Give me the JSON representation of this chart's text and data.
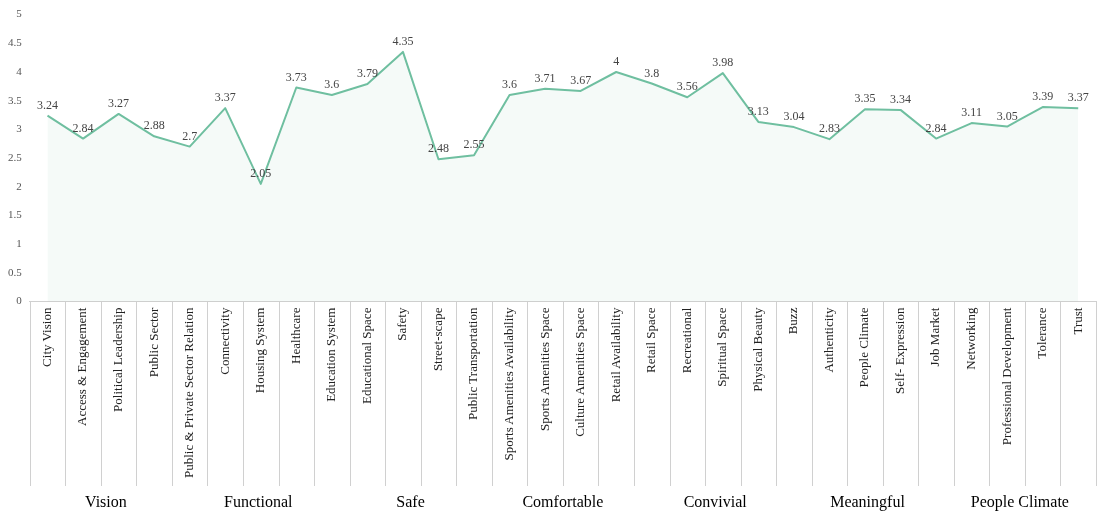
{
  "chart_data": {
    "type": "area",
    "categories": [
      "City Vision",
      "Access & Engagement",
      "Political Leadership",
      "Public Sector",
      "Public & Private Sector Relation",
      "Connectivity",
      "Housing System",
      "Healthcare",
      "Education System",
      "Educational Space",
      "Safety",
      "Street-scape",
      "Public Transportation",
      "Sports Amenities Availability",
      "Sports Amenities Space",
      "Culture Amenities Space",
      "Retail Availability",
      "Retail Space",
      "Recreational",
      "Spiritual Space",
      "Physical Beauty",
      "Buzz",
      "Authenticity",
      "People Climate",
      "Self- Expression",
      "Job Market",
      "Networking",
      "Professional Development",
      "Tolerance",
      "Trust"
    ],
    "series": [
      {
        "color": "#6fbfa0",
        "values": [
          3.24,
          2.84,
          3.27,
          2.88,
          2.7,
          3.37,
          2.05,
          3.73,
          3.6,
          3.79,
          4.35,
          2.48,
          2.55,
          3.6,
          3.71,
          3.67,
          4,
          3.8,
          3.56,
          3.98,
          3.13,
          3.04,
          2.83,
          3.35,
          3.34,
          2.84,
          3.11,
          3.05,
          3.39,
          3.37
        ]
      }
    ],
    "ylim": [
      0,
      5
    ],
    "yticks": [
      0,
      0.5,
      1,
      1.5,
      2,
      2.5,
      3,
      3.5,
      4,
      4.5,
      5
    ],
    "data_labels": true,
    "grid": false,
    "legend": false,
    "marker": "none",
    "line_style": "solid",
    "annotations": [
      "Vision",
      "Functional",
      "Safe",
      "Comfortable",
      "Convivial",
      "Meaningful",
      "People Climate"
    ]
  }
}
